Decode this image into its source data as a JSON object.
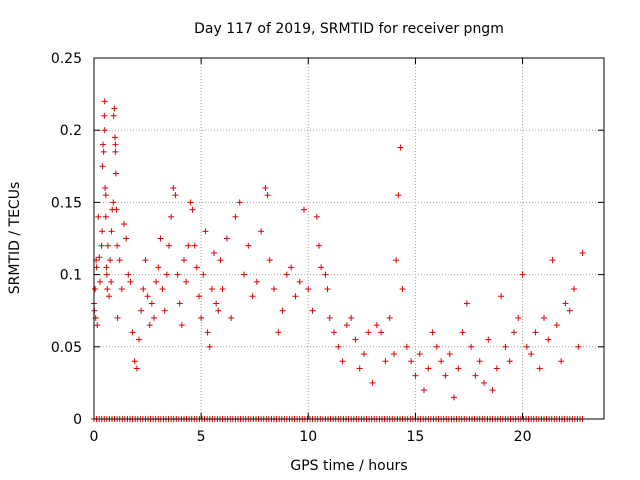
{
  "chart_data": {
    "type": "scatter",
    "title": "Day 117 of 2019, SRMTID for receiver pngm",
    "xlabel": "GPS time / hours",
    "ylabel": "SRMTID / TECUs",
    "xlim": [
      0,
      23.8
    ],
    "ylim": [
      0,
      0.25
    ],
    "xticks": [
      0,
      5,
      10,
      15,
      20
    ],
    "yticks": [
      0,
      0.05,
      0.1,
      0.15,
      0.2,
      0.25
    ],
    "xtick_labels": [
      "0",
      "5",
      "10",
      "15",
      "20"
    ],
    "ytick_labels": [
      "0",
      "0.05",
      "0.1",
      "0.15",
      "0.2",
      "0.25"
    ],
    "grid": true,
    "marker": "+",
    "color": "#dd0000",
    "zero_band_x_range": [
      0,
      22.8
    ],
    "series": [
      {
        "name": "SRMTID",
        "points": [
          [
            0.0,
            0.08
          ],
          [
            0.02,
            0.075
          ],
          [
            0.05,
            0.09
          ],
          [
            0.08,
            0.07
          ],
          [
            0.1,
            0.11
          ],
          [
            0.12,
            0.105
          ],
          [
            0.15,
            0.065
          ],
          [
            0.2,
            0.14
          ],
          [
            0.25,
            0.112
          ],
          [
            0.28,
            0.095
          ],
          [
            0.35,
            0.12
          ],
          [
            0.38,
            0.13
          ],
          [
            0.4,
            0.175
          ],
          [
            0.42,
            0.19
          ],
          [
            0.45,
            0.185
          ],
          [
            0.48,
            0.21
          ],
          [
            0.5,
            0.22
          ],
          [
            0.5,
            0.2
          ],
          [
            0.52,
            0.16
          ],
          [
            0.55,
            0.155
          ],
          [
            0.55,
            0.14
          ],
          [
            0.58,
            0.105
          ],
          [
            0.6,
            0.1
          ],
          [
            0.62,
            0.09
          ],
          [
            0.65,
            0.12
          ],
          [
            0.7,
            0.085
          ],
          [
            0.75,
            0.11
          ],
          [
            0.8,
            0.095
          ],
          [
            0.82,
            0.13
          ],
          [
            0.85,
            0.145
          ],
          [
            0.9,
            0.15
          ],
          [
            0.92,
            0.21
          ],
          [
            0.95,
            0.215
          ],
          [
            0.98,
            0.195
          ],
          [
            1.0,
            0.19
          ],
          [
            1.0,
            0.185
          ],
          [
            1.02,
            0.17
          ],
          [
            1.05,
            0.145
          ],
          [
            1.08,
            0.12
          ],
          [
            1.1,
            0.07
          ],
          [
            1.2,
            0.11
          ],
          [
            1.3,
            0.09
          ],
          [
            1.4,
            0.135
          ],
          [
            1.5,
            0.125
          ],
          [
            1.6,
            0.1
          ],
          [
            1.7,
            0.095
          ],
          [
            1.8,
            0.06
          ],
          [
            1.9,
            0.04
          ],
          [
            2.0,
            0.035
          ],
          [
            2.1,
            0.055
          ],
          [
            2.2,
            0.075
          ],
          [
            2.3,
            0.09
          ],
          [
            2.4,
            0.11
          ],
          [
            2.5,
            0.085
          ],
          [
            2.6,
            0.065
          ],
          [
            2.7,
            0.08
          ],
          [
            2.8,
            0.07
          ],
          [
            2.9,
            0.095
          ],
          [
            3.0,
            0.105
          ],
          [
            3.1,
            0.125
          ],
          [
            3.2,
            0.09
          ],
          [
            3.3,
            0.075
          ],
          [
            3.4,
            0.1
          ],
          [
            3.5,
            0.12
          ],
          [
            3.6,
            0.14
          ],
          [
            3.7,
            0.16
          ],
          [
            3.8,
            0.155
          ],
          [
            3.9,
            0.1
          ],
          [
            4.0,
            0.08
          ],
          [
            4.1,
            0.065
          ],
          [
            4.2,
            0.11
          ],
          [
            4.3,
            0.095
          ],
          [
            4.4,
            0.12
          ],
          [
            4.5,
            0.15
          ],
          [
            4.6,
            0.145
          ],
          [
            4.7,
            0.12
          ],
          [
            4.8,
            0.105
          ],
          [
            4.9,
            0.085
          ],
          [
            5.0,
            0.07
          ],
          [
            5.1,
            0.1
          ],
          [
            5.2,
            0.13
          ],
          [
            5.3,
            0.06
          ],
          [
            5.4,
            0.05
          ],
          [
            5.5,
            0.09
          ],
          [
            5.6,
            0.115
          ],
          [
            5.7,
            0.08
          ],
          [
            5.8,
            0.075
          ],
          [
            5.9,
            0.11
          ],
          [
            6.0,
            0.09
          ],
          [
            6.2,
            0.125
          ],
          [
            6.4,
            0.07
          ],
          [
            6.6,
            0.14
          ],
          [
            6.8,
            0.15
          ],
          [
            7.0,
            0.1
          ],
          [
            7.2,
            0.12
          ],
          [
            7.4,
            0.085
          ],
          [
            7.6,
            0.095
          ],
          [
            7.8,
            0.13
          ],
          [
            8.0,
            0.16
          ],
          [
            8.1,
            0.155
          ],
          [
            8.2,
            0.11
          ],
          [
            8.4,
            0.09
          ],
          [
            8.6,
            0.06
          ],
          [
            8.8,
            0.075
          ],
          [
            9.0,
            0.1
          ],
          [
            9.2,
            0.105
          ],
          [
            9.4,
            0.085
          ],
          [
            9.6,
            0.095
          ],
          [
            9.8,
            0.145
          ],
          [
            10.0,
            0.09
          ],
          [
            10.2,
            0.075
          ],
          [
            10.4,
            0.14
          ],
          [
            10.5,
            0.12
          ],
          [
            10.6,
            0.105
          ],
          [
            10.8,
            0.1
          ],
          [
            10.9,
            0.09
          ],
          [
            11.0,
            0.07
          ],
          [
            11.2,
            0.06
          ],
          [
            11.4,
            0.05
          ],
          [
            11.6,
            0.04
          ],
          [
            11.8,
            0.065
          ],
          [
            12.0,
            0.07
          ],
          [
            12.2,
            0.055
          ],
          [
            12.4,
            0.035
          ],
          [
            12.6,
            0.045
          ],
          [
            12.8,
            0.06
          ],
          [
            13.0,
            0.025
          ],
          [
            13.2,
            0.065
          ],
          [
            13.4,
            0.06
          ],
          [
            13.6,
            0.04
          ],
          [
            13.8,
            0.07
          ],
          [
            14.0,
            0.045
          ],
          [
            14.1,
            0.11
          ],
          [
            14.2,
            0.155
          ],
          [
            14.3,
            0.188
          ],
          [
            14.4,
            0.09
          ],
          [
            14.6,
            0.05
          ],
          [
            14.8,
            0.04
          ],
          [
            15.0,
            0.03
          ],
          [
            15.2,
            0.045
          ],
          [
            15.4,
            0.02
          ],
          [
            15.6,
            0.035
          ],
          [
            15.8,
            0.06
          ],
          [
            16.0,
            0.05
          ],
          [
            16.2,
            0.04
          ],
          [
            16.4,
            0.03
          ],
          [
            16.6,
            0.045
          ],
          [
            16.8,
            0.015
          ],
          [
            17.0,
            0.035
          ],
          [
            17.2,
            0.06
          ],
          [
            17.4,
            0.08
          ],
          [
            17.6,
            0.05
          ],
          [
            17.8,
            0.03
          ],
          [
            18.0,
            0.04
          ],
          [
            18.2,
            0.025
          ],
          [
            18.4,
            0.055
          ],
          [
            18.6,
            0.02
          ],
          [
            18.8,
            0.035
          ],
          [
            19.0,
            0.085
          ],
          [
            19.2,
            0.05
          ],
          [
            19.4,
            0.04
          ],
          [
            19.6,
            0.06
          ],
          [
            19.8,
            0.07
          ],
          [
            20.0,
            0.1
          ],
          [
            20.2,
            0.05
          ],
          [
            20.4,
            0.045
          ],
          [
            20.6,
            0.06
          ],
          [
            20.8,
            0.035
          ],
          [
            21.0,
            0.07
          ],
          [
            21.2,
            0.055
          ],
          [
            21.4,
            0.11
          ],
          [
            21.6,
            0.065
          ],
          [
            21.8,
            0.04
          ],
          [
            22.0,
            0.08
          ],
          [
            22.2,
            0.075
          ],
          [
            22.4,
            0.09
          ],
          [
            22.6,
            0.05
          ],
          [
            22.8,
            0.115
          ]
        ]
      }
    ]
  }
}
